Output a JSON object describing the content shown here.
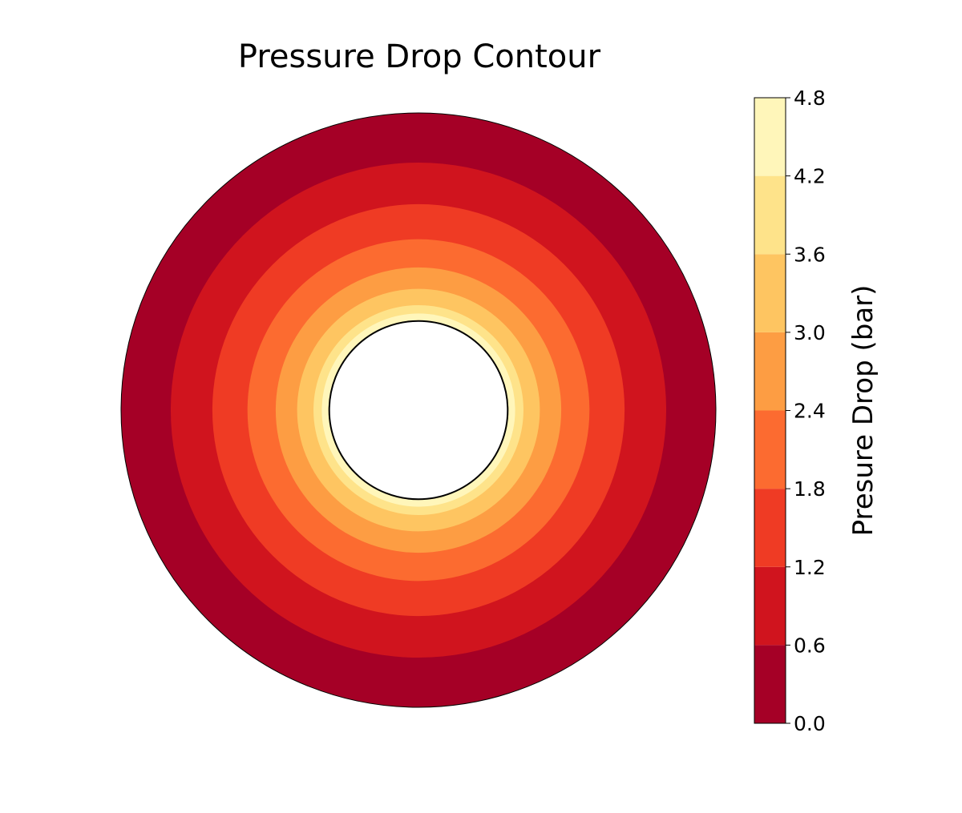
{
  "chart_data": {
    "type": "contour",
    "title": "Pressure Drop Contour",
    "colorbar": {
      "label": "Presure Drop (bar)",
      "levels": [
        0.0,
        0.6,
        1.2,
        1.8,
        2.4,
        3.0,
        3.6,
        4.2,
        4.8
      ],
      "tick_labels": [
        "0.0",
        "0.6",
        "1.2",
        "1.8",
        "2.4",
        "3.0",
        "3.6",
        "4.2",
        "4.8"
      ],
      "colors": [
        "#a50026",
        "#d0141e",
        "#ef3b24",
        "#fc6b30",
        "#fd9d43",
        "#fec561",
        "#fee38a",
        "#fff6ba"
      ],
      "placement": "right"
    },
    "domain": {
      "shape": "annulus",
      "inner_radius_fraction": 0.3,
      "outer_radius_fraction": 1.0
    },
    "contour_bands": [
      {
        "level_min": 0.0,
        "level_max": 0.6,
        "outer_radius_fraction": 1.0
      },
      {
        "level_min": 0.6,
        "level_max": 1.2,
        "outer_radius_fraction": 0.833
      },
      {
        "level_min": 1.2,
        "level_max": 1.8,
        "outer_radius_fraction": 0.693
      },
      {
        "level_min": 1.8,
        "level_max": 2.4,
        "outer_radius_fraction": 0.575
      },
      {
        "level_min": 2.4,
        "level_max": 3.0,
        "outer_radius_fraction": 0.48
      },
      {
        "level_min": 3.0,
        "level_max": 3.6,
        "outer_radius_fraction": 0.408
      },
      {
        "level_min": 3.6,
        "level_max": 4.2,
        "outer_radius_fraction": 0.353
      },
      {
        "level_min": 4.2,
        "level_max": 4.8,
        "outer_radius_fraction": 0.325
      }
    ],
    "grid": false,
    "axes_visible": false
  }
}
